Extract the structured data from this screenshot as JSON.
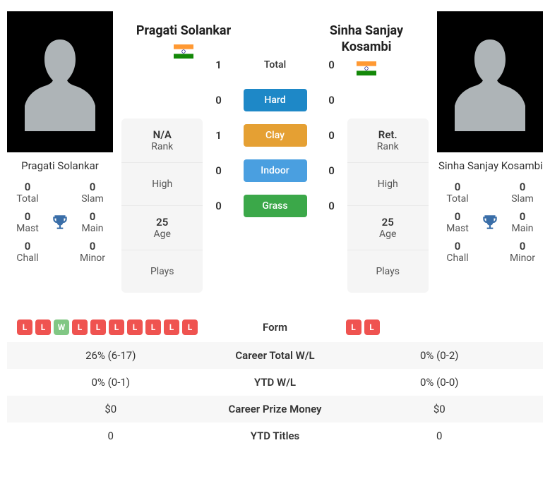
{
  "players": {
    "left": {
      "name": "Pragati Solankar",
      "country_flag": "india",
      "rank": "N/A",
      "high": "",
      "age": "25",
      "plays": "",
      "titles": {
        "total": "0",
        "slam": "0",
        "mast": "0",
        "main": "0",
        "chall": "0",
        "minor": "0"
      }
    },
    "right": {
      "name": "Sinha Sanjay Kosambi",
      "country_flag": "india",
      "rank": "Ret.",
      "high": "",
      "age": "25",
      "plays": "",
      "titles": {
        "total": "0",
        "slam": "0",
        "mast": "0",
        "main": "0",
        "chall": "0",
        "minor": "0"
      }
    }
  },
  "stat_labels": {
    "rank": "Rank",
    "high": "High",
    "age": "Age",
    "plays": "Plays"
  },
  "title_labels": {
    "total": "Total",
    "slam": "Slam",
    "mast": "Mast",
    "main": "Main",
    "chall": "Chall",
    "minor": "Minor"
  },
  "h2h": {
    "rows": [
      {
        "label": "Total",
        "left": "1",
        "right": "0",
        "is_pill": false,
        "color": ""
      },
      {
        "label": "Hard",
        "left": "0",
        "right": "0",
        "is_pill": true,
        "color": "#1e88c7"
      },
      {
        "label": "Clay",
        "left": "1",
        "right": "0",
        "is_pill": true,
        "color": "#e5a033"
      },
      {
        "label": "Indoor",
        "left": "0",
        "right": "0",
        "is_pill": true,
        "color": "#4a9fe0"
      },
      {
        "label": "Grass",
        "left": "0",
        "right": "0",
        "is_pill": true,
        "color": "#3ba849"
      }
    ]
  },
  "comparison": {
    "rows": [
      {
        "label": "Form",
        "type": "form",
        "left_form": [
          "L",
          "L",
          "W",
          "L",
          "L",
          "L",
          "L",
          "L",
          "L",
          "L"
        ],
        "right_form": [
          "L",
          "L"
        ]
      },
      {
        "label": "Career Total W/L",
        "type": "text",
        "left": "26% (6-17)",
        "right": "0% (0-2)"
      },
      {
        "label": "YTD W/L",
        "type": "text",
        "left": "0% (0-1)",
        "right": "0% (0-0)"
      },
      {
        "label": "Career Prize Money",
        "type": "text",
        "left": "$0",
        "right": "$0"
      },
      {
        "label": "YTD Titles",
        "type": "text",
        "left": "0",
        "right": "0"
      }
    ]
  },
  "colors": {
    "silhouette": "#aeb4b7",
    "trophy": "#3a6ea8",
    "badge_loss": "#ef5350",
    "badge_win": "#81c784"
  }
}
